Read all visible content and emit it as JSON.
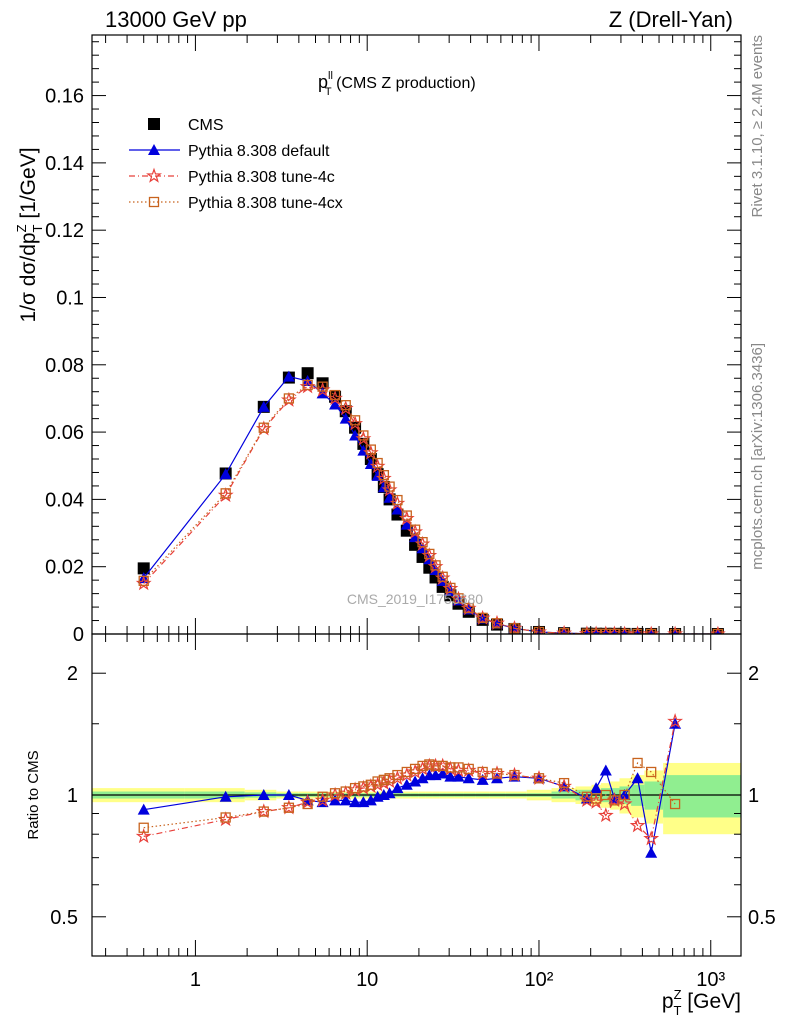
{
  "header": {
    "left": "13000 GeV pp",
    "right": "Z (Drell-Yan)"
  },
  "side_labels": {
    "rivet": "Rivet 3.1.10, ≥ 2.4M events",
    "mcplots": "mcplots.cern.ch [arXiv:1306.3436]"
  },
  "watermark": "CMS_2019_I1753680",
  "colors": {
    "cms": "#000000",
    "default": "#0000dd",
    "tune4c": "#e8403a",
    "tune4cx": "#c8631e",
    "band_inner": "#90ee90",
    "band_outer": "#ffff88"
  },
  "chart_data": [
    {
      "type": "scatter",
      "title_main": "p",
      "title_sup": "ll",
      "title_sub": "T",
      "title_rest": " (CMS Z production)",
      "ylabel": "1/σ dσ/dp",
      "ylabel_sup": "Z",
      "ylabel_sub": "T",
      "ylabel_unit": " [1/GeV]",
      "xscale": "log",
      "xlim": [
        0.25,
        1500
      ],
      "ylim": [
        0,
        0.178
      ],
      "yticks": [
        "0",
        "0.02",
        "0.04",
        "0.06",
        "0.08",
        "0.1",
        "0.12",
        "0.14",
        "0.16"
      ],
      "legend_position": "top-left",
      "legend": [
        "CMS",
        "Pythia 8.308 default",
        "Pythia 8.308 tune-4c",
        "Pythia 8.308 tune-4cx"
      ],
      "x": [
        0.5,
        1.5,
        2.5,
        3.5,
        4.5,
        5.5,
        6.5,
        7.5,
        8.5,
        9.5,
        10.5,
        11.5,
        12.5,
        13.5,
        15,
        17,
        19,
        21,
        23,
        25,
        27.5,
        30.5,
        34,
        39,
        47,
        57,
        72,
        100,
        140,
        190,
        215,
        245,
        275,
        315,
        375,
        450,
        620,
        1100
      ],
      "series": [
        {
          "name": "CMS",
          "marker": "square",
          "values": [
            0.0195,
            0.0477,
            0.0675,
            0.0762,
            0.0775,
            0.0745,
            0.0705,
            0.0662,
            0.0613,
            0.0565,
            0.052,
            0.0475,
            0.0437,
            0.04,
            0.0355,
            0.0307,
            0.0265,
            0.0229,
            0.0197,
            0.0168,
            0.014,
            0.0115,
            0.009,
            0.0066,
            0.0042,
            0.0028,
            0.0015,
            0.0006,
            0.00025,
            0.0001,
            8e-05,
            6e-05,
            5e-05,
            3e-05,
            2e-05,
            1e-05,
            5e-06,
            1e-06
          ]
        },
        {
          "name": "Pythia 8.308 default",
          "marker": "triangle",
          "values": [
            0.0166,
            0.0475,
            0.0675,
            0.0765,
            0.0752,
            0.0715,
            0.0682,
            0.064,
            0.059,
            0.0545,
            0.0505,
            0.047,
            0.0436,
            0.0405,
            0.037,
            0.0325,
            0.0288,
            0.0255,
            0.0222,
            0.019,
            0.0158,
            0.0128,
            0.01,
            0.0073,
            0.0046,
            0.0031,
            0.0017,
            0.0006,
            0.00026,
            0.0001,
            8e-05,
            6e-05,
            5e-05,
            3e-05,
            2e-05,
            7e-06,
            7e-06,
            1.5e-06
          ]
        },
        {
          "name": "Pythia 8.308 tune-4c",
          "marker": "star",
          "values": [
            0.015,
            0.0412,
            0.061,
            0.0695,
            0.0735,
            0.0725,
            0.07,
            0.067,
            0.0625,
            0.058,
            0.0538,
            0.0498,
            0.0462,
            0.0428,
            0.0388,
            0.0343,
            0.0303,
            0.0267,
            0.0233,
            0.02,
            0.0166,
            0.0135,
            0.0104,
            0.0076,
            0.0047,
            0.0032,
            0.0017,
            0.0006,
            0.00025,
            0.0001,
            7e-05,
            5e-05,
            5e-05,
            3e-05,
            1.7e-05,
            8e-06,
            7.5e-06,
            1.5e-06
          ]
        },
        {
          "name": "Pythia 8.308 tune-4cx",
          "marker": "open-square",
          "values": [
            0.0158,
            0.0418,
            0.0613,
            0.07,
            0.074,
            0.0735,
            0.071,
            0.068,
            0.0635,
            0.059,
            0.0548,
            0.0508,
            0.0472,
            0.0438,
            0.0398,
            0.0352,
            0.031,
            0.0273,
            0.0238,
            0.0204,
            0.017,
            0.0137,
            0.0106,
            0.0077,
            0.0048,
            0.0032,
            0.0017,
            0.0006,
            0.00025,
            0.0001,
            8e-05,
            6e-05,
            5e-05,
            3e-05,
            2e-05,
            1e-05,
            5e-06,
            1.5e-06
          ]
        }
      ]
    },
    {
      "type": "line",
      "ylabel": "Ratio to CMS",
      "xlabel": "p",
      "xlabel_sup": "Z",
      "xlabel_sub": "T",
      "xlabel_unit": " [GeV]",
      "xscale": "log",
      "yscale": "log",
      "xlim": [
        0.25,
        1500
      ],
      "ylim": [
        0.4,
        2.5
      ],
      "yticks": [
        "0.5",
        "1",
        "2"
      ],
      "xticks": [
        "1",
        "10",
        "10²",
        "10³"
      ],
      "x": [
        0.5,
        1.5,
        2.5,
        3.5,
        4.5,
        5.5,
        6.5,
        7.5,
        8.5,
        9.5,
        10.5,
        11.5,
        12.5,
        13.5,
        15,
        17,
        19,
        21,
        23,
        25,
        27.5,
        30.5,
        34,
        39,
        47,
        57,
        72,
        100,
        140,
        190,
        215,
        245,
        275,
        315,
        375,
        450,
        620
      ],
      "band_inner": [
        0.02,
        0.02,
        0.015,
        0.01,
        0.01,
        0.01,
        0.01,
        0.01,
        0.01,
        0.01,
        0.01,
        0.01,
        0.01,
        0.01,
        0.01,
        0.01,
        0.01,
        0.01,
        0.01,
        0.01,
        0.01,
        0.01,
        0.01,
        0.01,
        0.01,
        0.01,
        0.01,
        0.01,
        0.02,
        0.03,
        0.03,
        0.04,
        0.04,
        0.05,
        0.06,
        0.08,
        0.12
      ],
      "band_outer": [
        0.04,
        0.04,
        0.03,
        0.02,
        0.02,
        0.02,
        0.02,
        0.02,
        0.02,
        0.02,
        0.02,
        0.02,
        0.02,
        0.02,
        0.02,
        0.02,
        0.02,
        0.02,
        0.02,
        0.02,
        0.02,
        0.02,
        0.02,
        0.02,
        0.02,
        0.02,
        0.02,
        0.03,
        0.04,
        0.05,
        0.06,
        0.07,
        0.08,
        0.1,
        0.12,
        0.15,
        0.2
      ],
      "series": [
        {
          "name": "Pythia 8.308 default",
          "marker": "triangle",
          "values": [
            0.92,
            0.99,
            1.0,
            1.0,
            0.97,
            0.96,
            0.97,
            0.97,
            0.96,
            0.96,
            0.97,
            0.99,
            1.0,
            1.01,
            1.04,
            1.06,
            1.08,
            1.1,
            1.12,
            1.12,
            1.13,
            1.11,
            1.11,
            1.1,
            1.09,
            1.1,
            1.11,
            1.1,
            1.05,
            0.98,
            1.04,
            1.15,
            0.98,
            1.0,
            1.1,
            0.72,
            1.5
          ]
        },
        {
          "name": "Pythia 8.308 tune-4c",
          "marker": "star",
          "values": [
            0.79,
            0.87,
            0.91,
            0.93,
            0.96,
            0.97,
            1.0,
            1.01,
            1.03,
            1.04,
            1.05,
            1.06,
            1.07,
            1.08,
            1.1,
            1.12,
            1.14,
            1.16,
            1.18,
            1.18,
            1.18,
            1.16,
            1.15,
            1.15,
            1.13,
            1.13,
            1.12,
            1.1,
            1.05,
            0.97,
            0.96,
            0.89,
            0.97,
            0.95,
            0.84,
            0.78,
            1.52
          ]
        },
        {
          "name": "Pythia 8.308 tune-4cx",
          "marker": "open-square",
          "values": [
            0.83,
            0.88,
            0.91,
            0.93,
            0.95,
            0.99,
            1.01,
            1.02,
            1.04,
            1.05,
            1.06,
            1.08,
            1.09,
            1.1,
            1.12,
            1.14,
            1.16,
            1.18,
            1.19,
            1.18,
            1.18,
            1.17,
            1.17,
            1.16,
            1.14,
            1.13,
            1.12,
            1.1,
            1.07,
            0.99,
            0.98,
            1.0,
            0.97,
            1.0,
            1.2,
            1.14,
            0.95
          ]
        }
      ]
    }
  ]
}
